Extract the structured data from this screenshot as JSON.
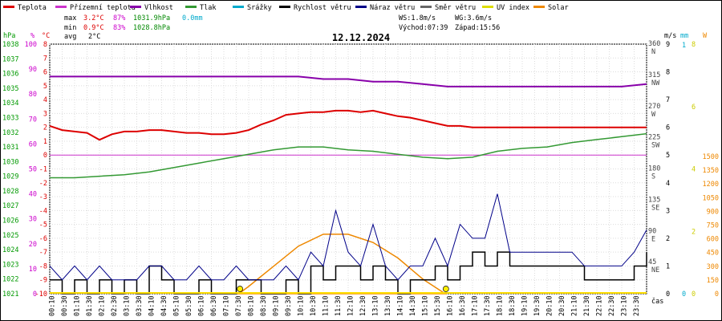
{
  "chart_data": {
    "type": "line",
    "title": "12.12.2024",
    "legend": [
      {
        "name": "Teplota",
        "color": "#dd0000"
      },
      {
        "name": "Přízemní teplota",
        "color": "#cc33cc"
      },
      {
        "name": "Vlhkost",
        "color": "#8800aa"
      },
      {
        "name": "Tlak",
        "color": "#339933"
      },
      {
        "name": "Srážky",
        "color": "#00aacc"
      },
      {
        "name": "Rychlost větru",
        "color": "#000000"
      },
      {
        "name": "Náraz větru",
        "color": "#000088"
      },
      {
        "name": "Směr větru",
        "color": "#666666"
      },
      {
        "name": "UV index",
        "color": "#dddd00"
      },
      {
        "name": "Solar",
        "color": "#ee8800"
      }
    ],
    "stats": {
      "max_label": "max",
      "max_temp": "3.2°C",
      "max_hum": "87%",
      "max_press": "1031.9hPa",
      "max_rain": "0.0mm",
      "min_label": "min",
      "min_temp": "0.9°C",
      "min_hum": "83%",
      "min_press": "1028.8hPa",
      "avg_label": "avg",
      "avg_temp": "2°C"
    },
    "wind_stats": {
      "ws": "WS:1.8m/s",
      "wg": "WG:3.6m/s",
      "sunrise": "Východ:07:39",
      "sunset": "Západ:15:56"
    },
    "axes": {
      "hpa": {
        "unit": "hPa",
        "ticks": [
          "1038",
          "1037",
          "1036",
          "1035",
          "1034",
          "1033",
          "1032",
          "1031",
          "1030",
          "1029",
          "1028",
          "1027",
          "1026",
          "1025",
          "1024",
          "1023",
          "1022",
          "1021"
        ],
        "color": "#009900"
      },
      "pct": {
        "unit": "%",
        "ticks": [
          "100",
          "90",
          "80",
          "70",
          "60",
          "50",
          "40",
          "30",
          "20",
          "10",
          "0"
        ],
        "color": "#cc00cc"
      },
      "temp": {
        "unit": "°C",
        "ticks": [
          "8",
          "7",
          "6",
          "5",
          "4",
          "3",
          "2",
          "1",
          "0",
          "-1",
          "-2",
          "-3",
          "-4",
          "-5",
          "-6",
          "-7",
          "-8",
          "-9",
          "-10"
        ],
        "color": "#dd0000",
        "range": [
          -10,
          8
        ]
      },
      "ms": {
        "unit": "m/s",
        "ticks": [
          "9",
          "8",
          "7",
          "6",
          "5",
          "4",
          "3",
          "2",
          "1",
          "0"
        ],
        "color": "#000000",
        "range": [
          0,
          9
        ]
      },
      "dir": {
        "ticks": [
          "360\nN",
          "315\nNW",
          "270\nW",
          "225\nSW",
          "180\nS",
          "135\nSE",
          "90\nE",
          "45\nNE"
        ],
        "color": "#444444"
      },
      "mm": {
        "unit": "mm",
        "ticks": [
          "1",
          "0"
        ],
        "color": "#00aacc"
      },
      "w": {
        "unit": "W",
        "ticks": [
          "1500",
          "1350",
          "1200",
          "1050",
          "900",
          "750",
          "600",
          "450",
          "300",
          "150",
          "0"
        ],
        "color": "#ee8800"
      },
      "uv": {
        "ticks": [
          "8",
          "6",
          "4",
          "2",
          "0"
        ],
        "color": "#cccc00"
      },
      "x_label": "čas",
      "x_ticks": [
        "00:10",
        "00:30",
        "01:10",
        "01:30",
        "02:10",
        "02:30",
        "03:10",
        "03:30",
        "04:10",
        "04:30",
        "05:10",
        "05:30",
        "06:10",
        "06:30",
        "07:10",
        "07:30",
        "08:10",
        "08:30",
        "09:10",
        "09:30",
        "10:10",
        "10:30",
        "11:10",
        "11:30",
        "12:10",
        "12:30",
        "13:10",
        "13:30",
        "14:10",
        "14:30",
        "15:10",
        "15:30",
        "16:10",
        "16:30",
        "17:10",
        "17:30",
        "18:10",
        "18:30",
        "19:10",
        "19:30",
        "20:10",
        "20:30",
        "21:10",
        "21:30",
        "22:10",
        "22:30",
        "23:10",
        "23:30"
      ]
    },
    "series": {
      "temperature": {
        "name": "Teplota",
        "x_hours": [
          0,
          0.5,
          1,
          1.5,
          2,
          2.5,
          3,
          3.5,
          4,
          4.5,
          5,
          5.5,
          6,
          6.5,
          7,
          7.5,
          8,
          8.5,
          9,
          9.5,
          10,
          10.5,
          11,
          11.5,
          12,
          12.5,
          13,
          13.5,
          14,
          14.5,
          15,
          15.5,
          16,
          16.5,
          17,
          17.5,
          18,
          18.5,
          19,
          19.5,
          20,
          20.5,
          21,
          21.5,
          22,
          22.5,
          23,
          23.5,
          24
        ],
        "values": [
          2.1,
          1.8,
          1.7,
          1.6,
          1.1,
          1.5,
          1.7,
          1.7,
          1.8,
          1.8,
          1.7,
          1.6,
          1.6,
          1.5,
          1.5,
          1.6,
          1.8,
          2.2,
          2.5,
          2.9,
          3.0,
          3.1,
          3.1,
          3.2,
          3.2,
          3.1,
          3.2,
          3.0,
          2.8,
          2.7,
          2.5,
          2.3,
          2.1,
          2.1,
          2.0,
          2.0,
          2.0,
          2.0,
          2.0,
          2.0,
          2.0,
          2.0,
          2.0,
          2.0,
          2.0,
          2.0,
          2.0,
          2.0,
          2.0
        ]
      },
      "humidity": {
        "name": "Vlhkost",
        "x_hours": [
          0,
          1,
          2,
          3,
          4,
          5,
          6,
          7,
          8,
          9,
          10,
          11,
          12,
          13,
          14,
          15,
          16,
          17,
          18,
          19,
          20,
          21,
          22,
          23,
          24
        ],
        "values": [
          87,
          87,
          87,
          87,
          87,
          87,
          87,
          87,
          87,
          87,
          87,
          86,
          86,
          85,
          85,
          84,
          83,
          83,
          83,
          83,
          83,
          83,
          83,
          83,
          84
        ]
      },
      "pressure": {
        "name": "Tlak",
        "x_hours": [
          0,
          1,
          2,
          3,
          4,
          5,
          6,
          7,
          8,
          9,
          10,
          11,
          12,
          13,
          14,
          15,
          16,
          17,
          18,
          19,
          20,
          21,
          22,
          23,
          24
        ],
        "values": [
          1028.9,
          1028.9,
          1029.0,
          1029.1,
          1029.3,
          1029.6,
          1029.9,
          1030.2,
          1030.5,
          1030.8,
          1031.0,
          1031.0,
          1030.8,
          1030.7,
          1030.5,
          1030.3,
          1030.2,
          1030.3,
          1030.7,
          1030.9,
          1031.0,
          1031.3,
          1031.5,
          1031.7,
          1031.9
        ]
      },
      "wind_speed": {
        "name": "Rychlost větru",
        "x_hours": [
          0,
          0.5,
          1,
          1.5,
          2,
          2.5,
          3,
          3.5,
          4,
          4.5,
          5,
          5.5,
          6,
          6.5,
          7,
          7.5,
          8,
          8.5,
          9,
          9.5,
          10,
          10.5,
          11,
          11.5,
          12,
          12.5,
          13,
          13.5,
          14,
          14.5,
          15,
          15.5,
          16,
          16.5,
          17,
          17.5,
          18,
          18.5,
          19,
          19.5,
          20,
          20.5,
          21,
          21.5,
          22,
          22.5,
          23,
          23.5,
          24
        ],
        "values": [
          0.5,
          0,
          0.5,
          0,
          0.5,
          0,
          0.5,
          0,
          1,
          0.5,
          0,
          0,
          0.5,
          0,
          0,
          0.5,
          0.5,
          0,
          0,
          0.5,
          0,
          1,
          0.5,
          1,
          1,
          0.5,
          1,
          0.5,
          0,
          0.5,
          0.5,
          1,
          0.5,
          1,
          1.5,
          1,
          1.5,
          1,
          1,
          1,
          1,
          1,
          1,
          0.5,
          0.5,
          0.5,
          0.5,
          1,
          1.5
        ]
      },
      "wind_gust": {
        "name": "Náraz větru",
        "x_hours": [
          0,
          0.5,
          1,
          1.5,
          2,
          2.5,
          3,
          3.5,
          4,
          4.5,
          5,
          5.5,
          6,
          6.5,
          7,
          7.5,
          8,
          8.5,
          9,
          9.5,
          10,
          10.5,
          11,
          11.5,
          12,
          12.5,
          13,
          13.5,
          14,
          14.5,
          15,
          15.5,
          16,
          16.5,
          17,
          17.5,
          18,
          18.5,
          19,
          19.5,
          20,
          20.5,
          21,
          21.5,
          22,
          22.5,
          23,
          23.5,
          24
        ],
        "values": [
          1,
          0.5,
          1,
          0.5,
          1,
          0.5,
          0.5,
          0.5,
          1,
          1,
          0.5,
          0.5,
          1,
          0.5,
          0.5,
          1,
          0.5,
          0.5,
          0.5,
          1,
          0.5,
          1.5,
          1,
          3,
          1.5,
          1,
          2.5,
          1,
          0.5,
          1,
          1,
          2,
          1,
          2.5,
          2,
          2,
          3.6,
          1.5,
          1.5,
          1.5,
          1.5,
          1.5,
          1.5,
          1,
          1,
          1,
          1,
          1.5,
          2.3
        ]
      },
      "solar": {
        "name": "Solar",
        "x_hours": [
          7.6,
          8,
          9,
          10,
          11,
          12,
          13,
          14,
          15,
          15.9
        ],
        "values": [
          0,
          80,
          300,
          520,
          650,
          650,
          560,
          390,
          160,
          0
        ]
      },
      "rain_total": {
        "name": "Srážky",
        "value": 0.0
      }
    }
  }
}
